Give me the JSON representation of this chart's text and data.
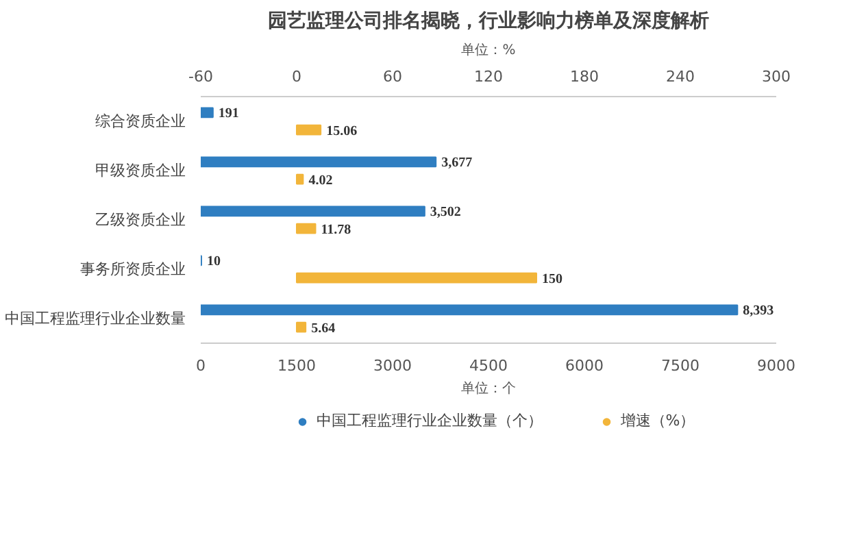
{
  "chart_data": {
    "type": "bar",
    "orientation": "horizontal",
    "title": "园艺监理公司排名揭晓，行业影响力榜单及深度解析",
    "xlabel": "单位：个",
    "x2label": "单位：%",
    "categories": [
      "综合资质企业",
      "甲级资质企业",
      "乙级资质企业",
      "事务所资质企业",
      "中国工程监理行业企业数量"
    ],
    "series": [
      {
        "name": "中国工程监理行业企业数量（个）",
        "color": "#2f7ec1",
        "values": [
          191,
          3677,
          3502,
          10,
          8393
        ],
        "value_labels": [
          "191",
          "3,677",
          "3,502",
          "10",
          "8,393"
        ]
      },
      {
        "name": "增速（%）",
        "color": "#f2b53a",
        "axis": "x2",
        "values": [
          15.06,
          4.02,
          11.78,
          150,
          5.64
        ],
        "value_labels": [
          "15.06",
          "4.02",
          "11.78",
          "150",
          "5.64"
        ]
      }
    ],
    "xlim": [
      0,
      9000
    ],
    "xticks": [
      0,
      1500,
      3000,
      4500,
      6000,
      7500,
      9000
    ],
    "x2lim": [
      -60,
      300
    ],
    "x2ticks": [
      -60,
      0,
      60,
      120,
      180,
      240,
      300
    ],
    "grid": false,
    "legend": "bottom"
  }
}
